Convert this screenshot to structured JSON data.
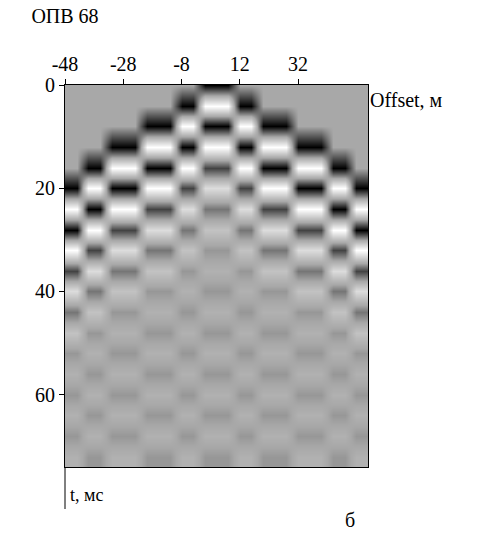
{
  "chart_data": {
    "type": "heatmap",
    "title": "ОПВ 68",
    "x_label": "Offset, м",
    "y_label": "t, мс",
    "annotations": [
      "б"
    ],
    "xlim": [
      -48,
      56
    ],
    "xticks": [
      -48,
      -28,
      -8,
      12,
      32
    ],
    "ylim": [
      0,
      74
    ],
    "yticks": [
      0,
      20,
      40,
      60
    ],
    "x": [
      -48,
      -44,
      -40,
      -36,
      -32,
      -28,
      -24,
      -20,
      -16,
      -12,
      -8,
      -4,
      0,
      4,
      8,
      12,
      16,
      20,
      24,
      28,
      32,
      36,
      40,
      44,
      48,
      52,
      56
    ],
    "y": [
      0,
      4,
      8,
      12,
      16,
      20,
      24,
      28,
      32,
      36,
      40,
      44,
      48,
      52,
      56,
      60,
      64,
      68,
      72
    ],
    "cells": [
      [
        0,
        0,
        0,
        0,
        0,
        0,
        0,
        0,
        0,
        0,
        0,
        0,
        1,
        1,
        1,
        0,
        0,
        0,
        0,
        0,
        0,
        0,
        0,
        0,
        0,
        0,
        0
      ],
      [
        0,
        0,
        0,
        0,
        0,
        0,
        0,
        0,
        0,
        0,
        1,
        1,
        -1,
        -1,
        -1,
        1,
        1,
        0,
        0,
        0,
        0,
        0,
        0,
        0,
        0,
        0,
        0
      ],
      [
        0,
        0,
        0,
        0,
        0,
        0,
        0,
        1,
        1,
        1,
        -1,
        -1,
        1,
        1,
        1,
        -1,
        -1,
        1,
        1,
        1,
        0,
        0,
        0,
        0,
        0,
        0,
        0
      ],
      [
        0,
        0,
        0,
        0,
        1,
        1,
        1,
        -1,
        -1,
        -1,
        1,
        1,
        -1,
        -1,
        -1,
        1,
        1,
        -1,
        -1,
        -1,
        1,
        1,
        1,
        0,
        0,
        0,
        0
      ],
      [
        0,
        0,
        1,
        1,
        -1,
        -1,
        -1,
        1,
        1,
        1,
        -1,
        -1,
        0.6,
        0.6,
        0.6,
        -1,
        -1,
        1,
        1,
        1,
        -1,
        -1,
        -1,
        1,
        1,
        0,
        0
      ],
      [
        1,
        1,
        -1,
        -1,
        1,
        1,
        1,
        -1,
        -1,
        -1,
        0.6,
        0.6,
        -0.6,
        -0.6,
        -0.6,
        0.6,
        0.6,
        -1,
        -1,
        -1,
        1,
        1,
        1,
        -1,
        -1,
        1,
        1
      ],
      [
        -1,
        -1,
        1,
        1,
        -1,
        -1,
        -1,
        0.6,
        0.6,
        0.6,
        -0.6,
        -0.6,
        0.3,
        0.3,
        0.3,
        -0.6,
        -0.6,
        0.6,
        0.6,
        0.6,
        -1,
        -1,
        -1,
        1,
        1,
        -1,
        -1
      ],
      [
        1,
        1,
        -1,
        -1,
        0.6,
        0.6,
        0.6,
        -0.6,
        -0.6,
        -0.6,
        0.3,
        0.3,
        -0.3,
        -0.3,
        -0.3,
        0.3,
        0.3,
        -0.6,
        -0.6,
        -0.6,
        0.6,
        0.6,
        0.6,
        -1,
        -1,
        1,
        1
      ],
      [
        -1,
        -1,
        0.6,
        0.6,
        -0.6,
        -0.6,
        -0.6,
        0.3,
        0.3,
        0.3,
        -0.3,
        -0.3,
        0.1,
        0.1,
        0.1,
        -0.3,
        -0.3,
        0.3,
        0.3,
        0.3,
        -0.6,
        -0.6,
        -0.6,
        0.6,
        0.6,
        -1,
        -1
      ],
      [
        0.6,
        0.6,
        -0.6,
        -0.6,
        0.3,
        0.3,
        0.3,
        -0.3,
        -0.3,
        -0.3,
        0.1,
        0.1,
        -0.1,
        -0.1,
        -0.1,
        0.1,
        0.1,
        -0.3,
        -0.3,
        -0.3,
        0.3,
        0.3,
        0.3,
        -0.6,
        -0.6,
        0.6,
        0.6
      ],
      [
        -0.6,
        -0.6,
        0.3,
        0.3,
        -0.3,
        -0.3,
        -0.3,
        0.1,
        0.1,
        0.1,
        -0.1,
        -0.1,
        0.1,
        0.1,
        0.1,
        -0.1,
        -0.1,
        0.1,
        0.1,
        0.1,
        -0.3,
        -0.3,
        -0.3,
        0.3,
        0.3,
        -0.6,
        -0.6
      ],
      [
        0.3,
        0.3,
        -0.3,
        -0.3,
        0.1,
        0.1,
        0.1,
        -0.1,
        -0.1,
        -0.1,
        0.1,
        0.1,
        -0.1,
        -0.1,
        -0.1,
        0.1,
        0.1,
        -0.1,
        -0.1,
        -0.1,
        0.1,
        0.1,
        0.1,
        -0.3,
        -0.3,
        0.3,
        0.3
      ],
      [
        -0.3,
        -0.3,
        0.1,
        0.1,
        -0.1,
        -0.1,
        -0.1,
        0.1,
        0.1,
        0.1,
        -0.1,
        -0.1,
        0.1,
        0.1,
        0.1,
        -0.1,
        -0.1,
        0.1,
        0.1,
        0.1,
        -0.1,
        -0.1,
        -0.1,
        0.1,
        0.1,
        -0.3,
        -0.3
      ],
      [
        0.1,
        0.1,
        -0.1,
        -0.1,
        0.1,
        0.1,
        0.1,
        -0.1,
        -0.1,
        -0.1,
        0.1,
        0.1,
        -0.1,
        -0.1,
        -0.1,
        0.1,
        0.1,
        -0.1,
        -0.1,
        -0.1,
        0.1,
        0.1,
        0.1,
        -0.1,
        -0.1,
        0.1,
        0.1
      ],
      [
        -0.1,
        -0.1,
        0.1,
        0.1,
        -0.1,
        -0.1,
        -0.1,
        0.1,
        0.1,
        0.1,
        -0.1,
        -0.1,
        0.1,
        0.1,
        0.1,
        -0.1,
        -0.1,
        0.1,
        0.1,
        0.1,
        -0.1,
        -0.1,
        -0.1,
        0.1,
        0.1,
        -0.1,
        -0.1
      ],
      [
        0.1,
        0.1,
        -0.1,
        -0.1,
        0.1,
        0.1,
        0.1,
        -0.1,
        -0.1,
        -0.1,
        0.1,
        0.1,
        -0.1,
        -0.1,
        -0.1,
        0.1,
        0.1,
        -0.1,
        -0.1,
        -0.1,
        0.1,
        0.1,
        0.1,
        -0.1,
        -0.1,
        0.1,
        0.1
      ],
      [
        -0.1,
        -0.1,
        0.1,
        0.1,
        -0.1,
        -0.1,
        -0.1,
        0.1,
        0.1,
        0.1,
        -0.1,
        -0.1,
        0.1,
        0.1,
        0.1,
        -0.1,
        -0.1,
        0.1,
        0.1,
        0.1,
        -0.1,
        -0.1,
        -0.1,
        0.1,
        0.1,
        -0.1,
        -0.1
      ],
      [
        0.1,
        0.1,
        -0.1,
        -0.1,
        0.1,
        0.1,
        0.1,
        -0.1,
        -0.1,
        -0.1,
        0.1,
        0.1,
        -0.1,
        -0.1,
        -0.1,
        0.1,
        0.1,
        -0.1,
        -0.1,
        -0.1,
        0.1,
        0.1,
        0.1,
        -0.1,
        -0.1,
        0.1,
        0.1
      ],
      [
        -0.1,
        -0.1,
        0.1,
        0.1,
        -0.1,
        -0.1,
        -0.1,
        0.1,
        0.1,
        0.1,
        -0.1,
        -0.1,
        0.1,
        0.1,
        0.1,
        -0.1,
        -0.1,
        0.1,
        0.1,
        0.1,
        -0.1,
        -0.1,
        -0.1,
        0.1,
        0.1,
        -0.1,
        -0.1
      ]
    ]
  }
}
